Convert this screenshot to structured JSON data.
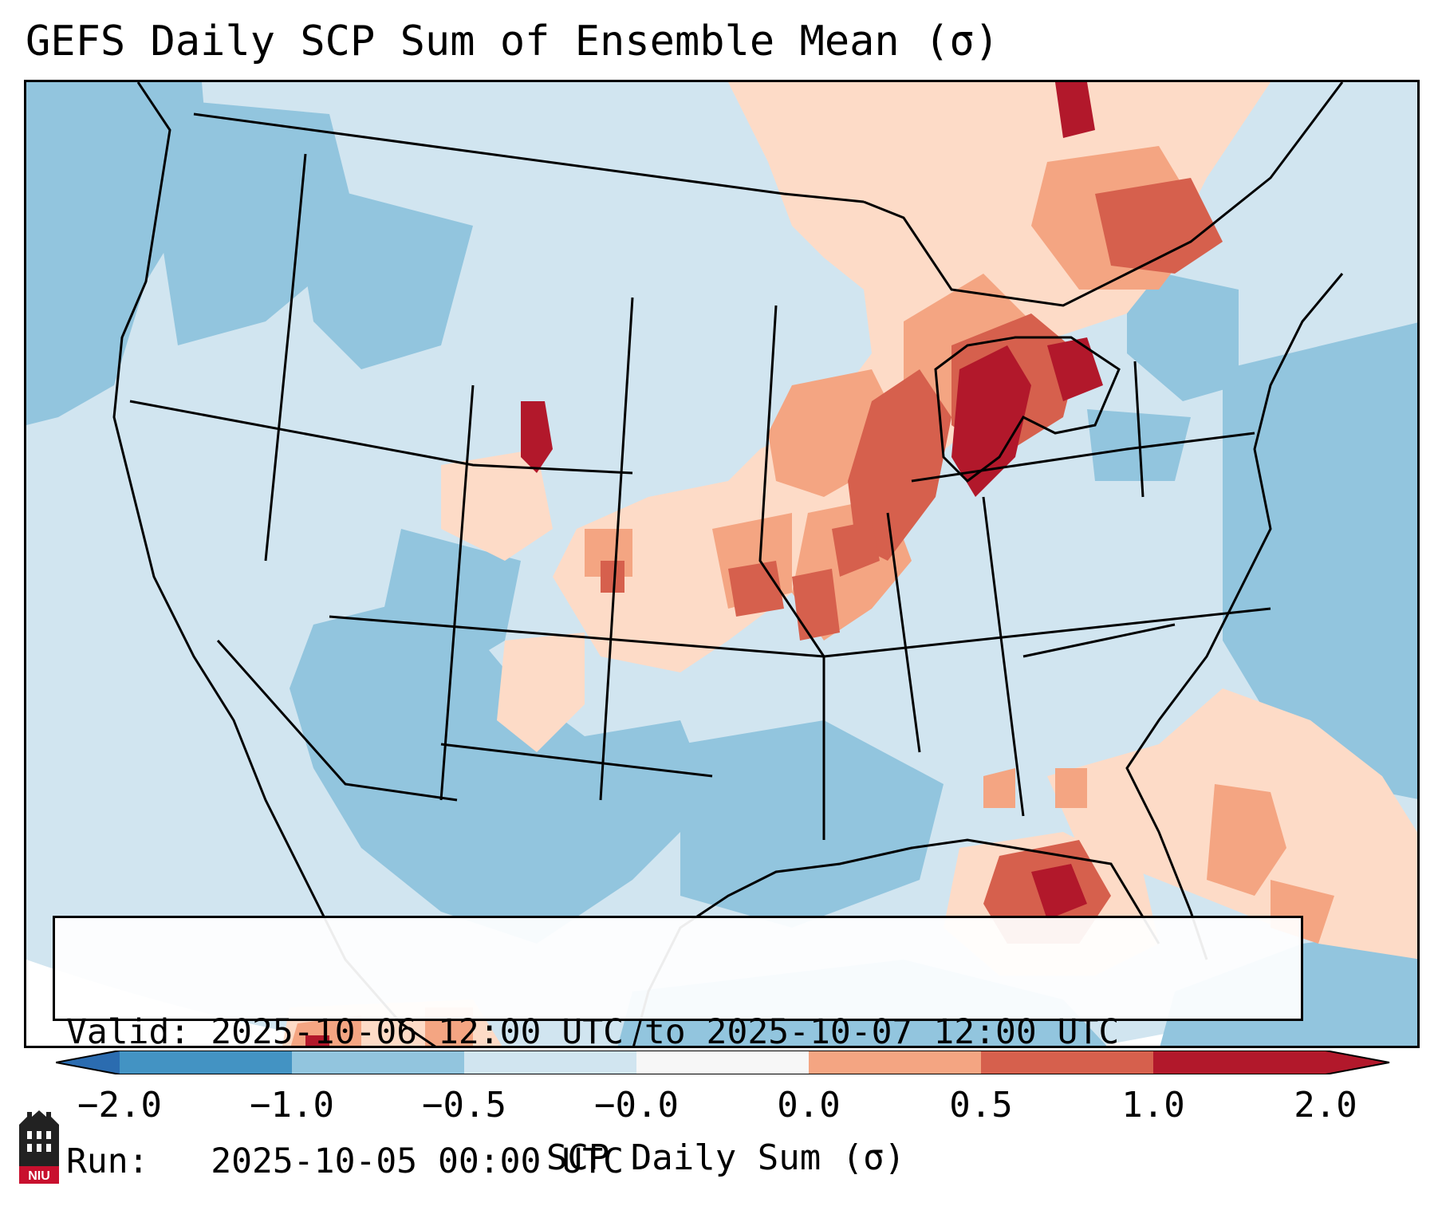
{
  "title": "GEFS Daily SCP Sum of Ensemble Mean (σ)",
  "info": {
    "valid_label": "Valid:",
    "valid_value": "2025-10-06 12:00 UTC to 2025-10-07 12:00 UTC",
    "run_label": "Run:",
    "run_value": "2025-10-05 00:00 UTC"
  },
  "colorbar": {
    "label": "SCP Daily Sum (σ)",
    "ticks": [
      "−2.0",
      "−1.0",
      "−0.5",
      "−0.0",
      "0.0",
      "0.5",
      "1.0",
      "2.0"
    ],
    "bins": [
      {
        "range": "< -2.0",
        "color": "#2b6cb0"
      },
      {
        "range": "-2.0 to -1.0",
        "color": "#4393c3"
      },
      {
        "range": "-1.0 to -0.5",
        "color": "#92c5de"
      },
      {
        "range": "-0.5 to -0.0",
        "color": "#d1e5f0"
      },
      {
        "range": "-0.0 to 0.0",
        "color": "#f7f7f7"
      },
      {
        "range": "0.0 to 0.5",
        "color": "#fddbc7"
      },
      {
        "range": "0.5 to 1.0",
        "color": "#f4a582"
      },
      {
        "range": "1.0 to 2.0",
        "color": "#d6604d"
      },
      {
        "range": "> 2.0",
        "color": "#b2182b"
      }
    ]
  },
  "logo": {
    "text": "NIU"
  }
}
